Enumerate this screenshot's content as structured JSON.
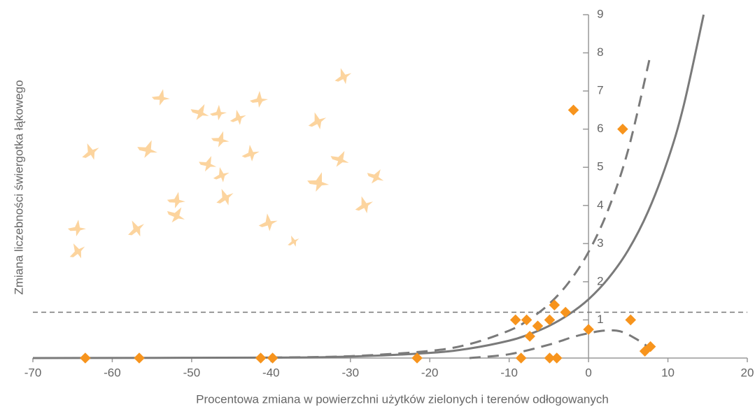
{
  "chart_data": {
    "type": "scatter",
    "x_label": "Procentowa zmiana w powierzchni użytków zielonych i terenów odłogowanych",
    "y_label": "Zmiana liczebności świergotka łąkowego",
    "xlim": [
      -70,
      20
    ],
    "xticks": [
      -70,
      -60,
      -50,
      -40,
      -30,
      -20,
      -10,
      0,
      10,
      20
    ],
    "ylim": [
      0,
      9
    ],
    "yticks": [
      1,
      2,
      3,
      4,
      5,
      6,
      7,
      8,
      9
    ],
    "hline": 1.2,
    "hline_color": "#777777",
    "points": {
      "color": "#f7941d",
      "x": [
        -63.4,
        -56.6,
        -41.3,
        -39.8,
        -21.6,
        -9.2,
        -8.5,
        -7.8,
        -7.4,
        -6.4,
        -4.9,
        -4.9,
        -4.3,
        -4.0,
        -2.9,
        -1.9,
        0,
        4.3,
        5.3,
        7.1,
        7.8
      ],
      "values": [
        0,
        0,
        0,
        0,
        0,
        1.0,
        0,
        1.0,
        0.57,
        0.84,
        1.0,
        0,
        1.39,
        0,
        1.2,
        6.5,
        0.75,
        6.0,
        1.0,
        0.18,
        0.3
      ]
    },
    "curves": [
      {
        "color": "#7a7a7a",
        "dashed": false,
        "x": [
          -70,
          -40,
          -30,
          -20,
          -15,
          -10,
          -7.5,
          -5,
          -2.5,
          0,
          2.5,
          5,
          7.5,
          10,
          12,
          14.5
        ],
        "values": [
          0.0003,
          0.0119,
          0.04,
          0.135,
          0.249,
          0.456,
          0.62,
          0.84,
          1.14,
          1.54,
          2.09,
          2.83,
          3.84,
          5.2,
          6.63,
          9.0
        ]
      },
      {
        "color": "#7a7a7a",
        "dashed": true,
        "x": [
          -40,
          -30,
          -20,
          -15,
          -10,
          -7.5,
          -5,
          -2.5,
          0,
          2.5,
          5,
          7.7
        ],
        "values": [
          0.0126,
          0.049,
          0.187,
          0.366,
          0.72,
          1.01,
          1.41,
          1.98,
          2.78,
          3.9,
          5.46,
          7.85
        ]
      },
      {
        "color": "#7a7a7a",
        "dashed": true,
        "x": [
          -15,
          -10,
          -5,
          -2,
          0,
          2,
          4,
          6,
          7.8
        ],
        "values": [
          0,
          0.1,
          0.35,
          0.55,
          0.65,
          0.72,
          0.7,
          0.5,
          0.25
        ]
      }
    ]
  }
}
